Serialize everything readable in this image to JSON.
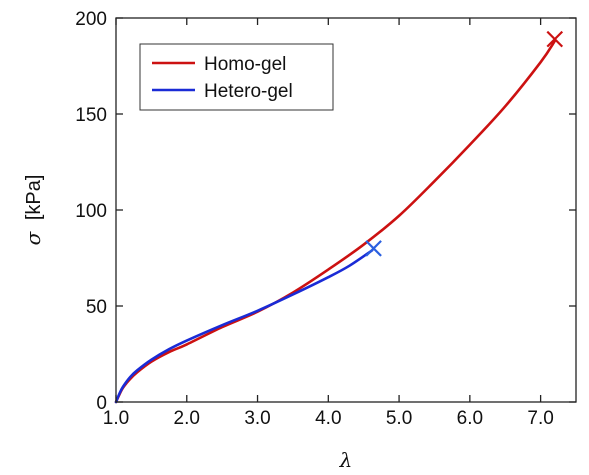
{
  "chart_data": {
    "type": "line",
    "xlabel": "λ",
    "ylabel_symbol": "σ",
    "ylabel_unit": "[kPa]",
    "xlim": [
      1.0,
      7.5
    ],
    "ylim": [
      0,
      200
    ],
    "xticks": [
      1.0,
      2.0,
      3.0,
      4.0,
      5.0,
      6.0,
      7.0
    ],
    "xtick_labels": [
      "1.0",
      "2.0",
      "3.0",
      "4.0",
      "5.0",
      "6.0",
      "7.0"
    ],
    "yticks": [
      0,
      50,
      100,
      150,
      200
    ],
    "ytick_labels": [
      "0",
      "50",
      "100",
      "150",
      "200"
    ],
    "grid": false,
    "legend_position": "top-left",
    "series": [
      {
        "name": "Homo-gel",
        "color": "#cc1111",
        "x": [
          1.0,
          1.05,
          1.1,
          1.2,
          1.3,
          1.5,
          1.75,
          2.0,
          2.5,
          3.0,
          3.5,
          4.0,
          4.5,
          5.0,
          5.5,
          6.0,
          6.5,
          7.0,
          7.2
        ],
        "y": [
          0,
          4,
          7.5,
          12,
          15.5,
          21,
          26,
          30,
          39,
          47,
          57,
          69,
          82,
          97,
          115,
          134,
          154,
          177,
          188
        ],
        "break_point": {
          "x": 7.2,
          "y": 189,
          "marker": "x"
        }
      },
      {
        "name": "Hetero-gel",
        "color": "#1a2bd6",
        "x": [
          1.0,
          1.05,
          1.1,
          1.2,
          1.3,
          1.5,
          1.75,
          2.0,
          2.5,
          3.0,
          3.5,
          4.0,
          4.3,
          4.62
        ],
        "y": [
          0,
          4.5,
          8,
          13,
          16.5,
          22,
          27.5,
          32,
          40,
          47.5,
          56,
          65,
          71,
          79
        ],
        "break_point": {
          "x": 4.64,
          "y": 80,
          "marker": "x",
          "color": "#2a5fe0"
        }
      }
    ]
  }
}
